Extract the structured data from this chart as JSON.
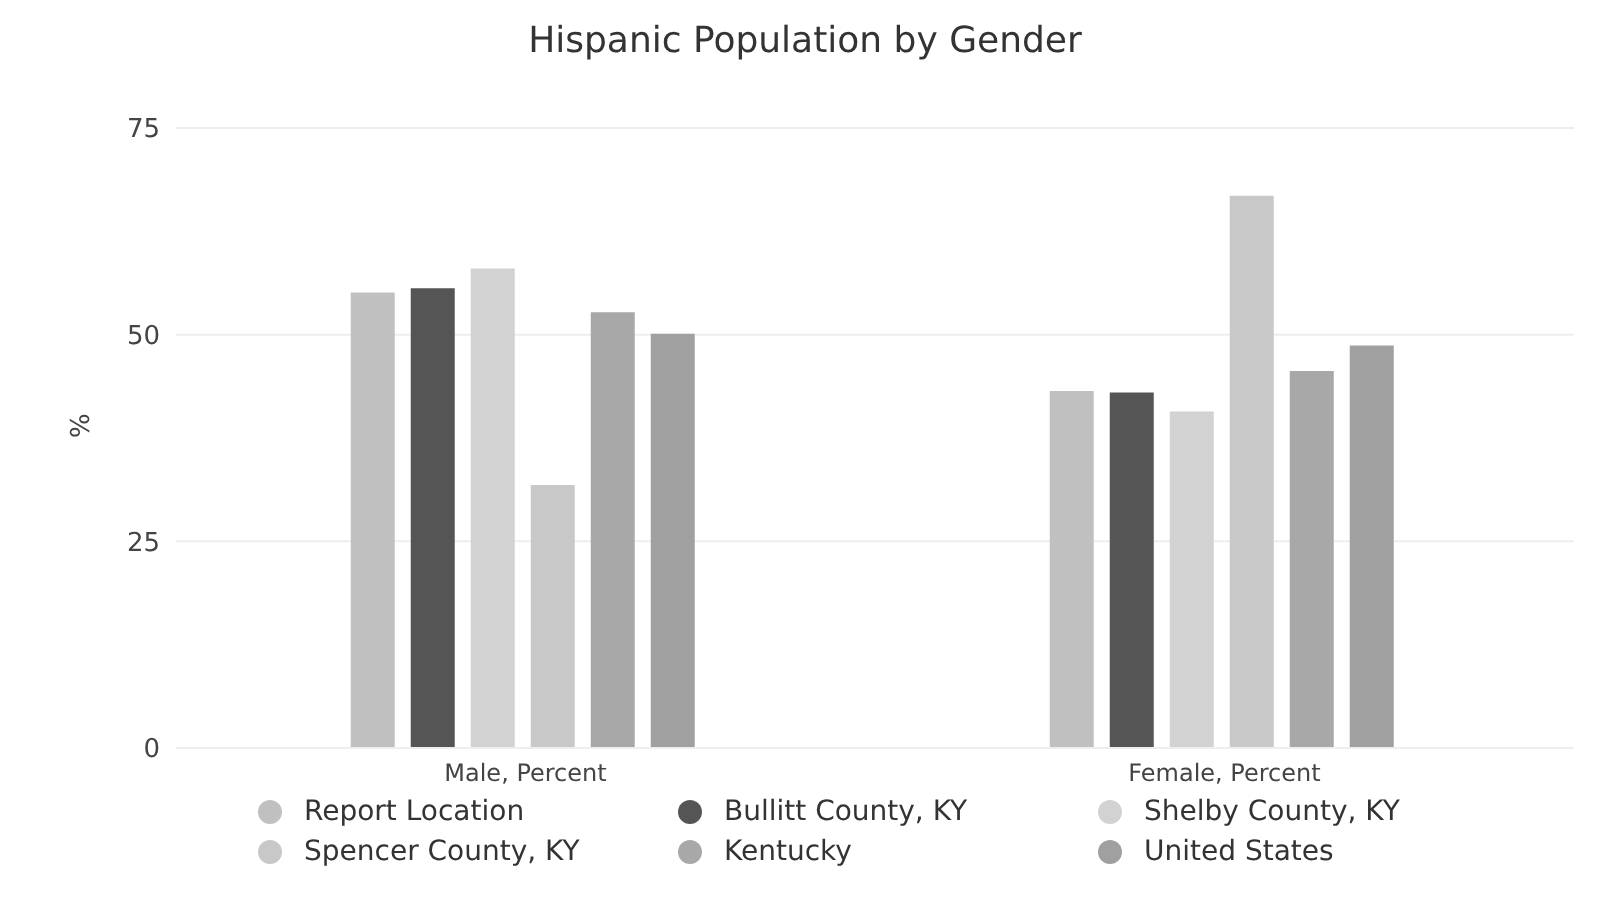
{
  "chart_data": {
    "type": "bar",
    "title": "Hispanic Population by Gender",
    "ylabel": "%",
    "categories": [
      "Male, Percent",
      "Female, Percent"
    ],
    "series": [
      {
        "name": "Report Location",
        "color": "#c0c0c0",
        "values": [
          55.1,
          43.2
        ]
      },
      {
        "name": "Bullitt County, KY",
        "color": "#555555",
        "values": [
          55.6,
          43
        ]
      },
      {
        "name": "Shelby County, KY",
        "color": "#d2d2d2",
        "values": [
          58,
          40.7
        ]
      },
      {
        "name": "Spencer County, KY",
        "color": "#c8c8c8",
        "values": [
          31.8,
          66.8
        ]
      },
      {
        "name": "Kentucky",
        "color": "#a8a8a8",
        "values": [
          52.7,
          45.6
        ]
      },
      {
        "name": "United States",
        "color": "#a0a0a0",
        "values": [
          50.1,
          48.7
        ]
      }
    ],
    "ylim": [
      0,
      75
    ],
    "yticks": [
      0,
      25,
      50,
      75
    ],
    "grid": "y",
    "legend": "bottom",
    "marker": "circle"
  }
}
